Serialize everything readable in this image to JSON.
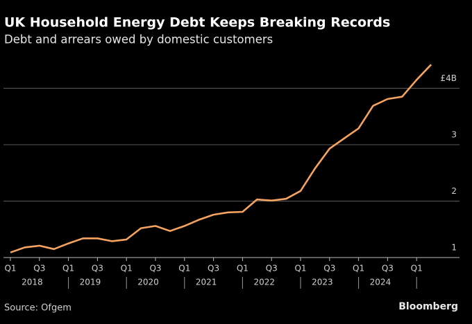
{
  "chart_data": {
    "type": "line",
    "title": "UK Household Energy Debt Keeps Breaking Records",
    "subtitle": "Debt and arrears owed by domestic customers",
    "source": "Source: Ofgem",
    "brand": "Bloomberg",
    "categories": [
      "Q1",
      null,
      "Q3",
      null,
      "Q1",
      null,
      "Q3",
      null,
      "Q1",
      null,
      "Q3",
      null,
      "Q1",
      null,
      "Q3",
      null,
      "Q1",
      null,
      "Q3",
      null,
      "Q1",
      null,
      "Q3",
      null,
      "Q1",
      null,
      "Q3",
      null,
      "Q1",
      null
    ],
    "year_labels": [
      "2018",
      "2019",
      "2020",
      "2021",
      "2022",
      "2023",
      "2024"
    ],
    "series": [
      {
        "name": "Debt and arrears",
        "color": "#f6a35f",
        "values": [
          1.09,
          1.18,
          1.21,
          1.15,
          1.25,
          1.34,
          1.34,
          1.29,
          1.32,
          1.52,
          1.56,
          1.47,
          1.56,
          1.67,
          1.76,
          1.8,
          1.81,
          2.03,
          2.01,
          2.04,
          2.18,
          2.58,
          2.93,
          3.11,
          3.29,
          3.69,
          3.81,
          3.85,
          4.15,
          4.42
        ]
      }
    ],
    "ylim": [
      1,
      4.6
    ],
    "yticks": [
      1,
      2,
      3,
      {
        "value": 4,
        "label": "£4B"
      }
    ],
    "grid": true
  }
}
